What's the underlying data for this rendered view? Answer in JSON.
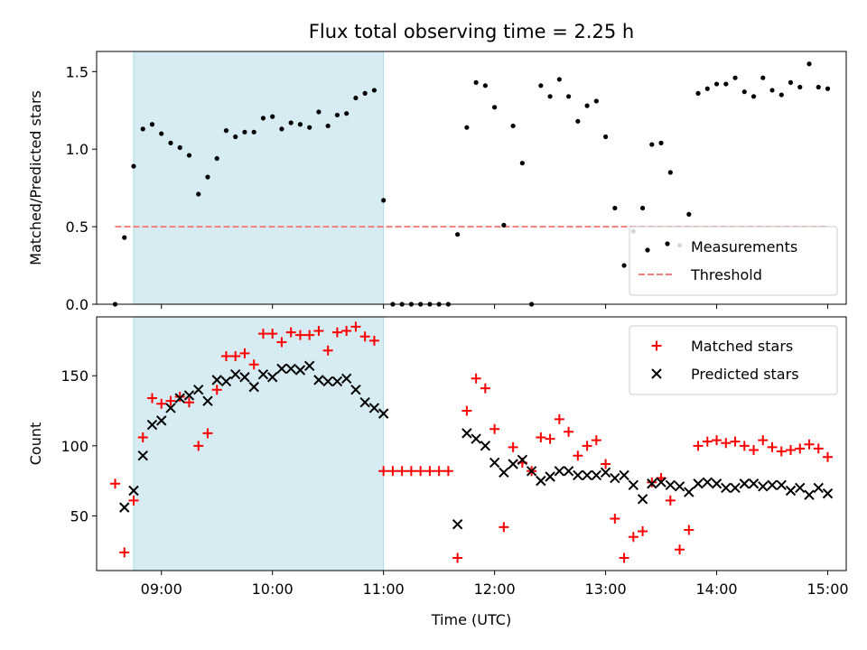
{
  "title": "Flux total observing time = 2.25 h",
  "chart_data": [
    {
      "type": "scatter",
      "ylabel": "Matched/Predicted stars",
      "xlim": [
        "08:25",
        "15:10"
      ],
      "ylim": [
        0,
        1.63
      ],
      "yticks": [
        0.0,
        0.5,
        1.0,
        1.5
      ],
      "ytick_labels": [
        "0.0",
        "0.5",
        "1.0",
        "1.5"
      ],
      "shaded_span": [
        "08:45",
        "11:00"
      ],
      "legend": {
        "placement": "lower-right",
        "entries": [
          "Measurements",
          "Threshold"
        ]
      },
      "threshold": {
        "name": "Threshold",
        "value": 0.5,
        "x_range": [
          "08:35",
          "15:00"
        ],
        "color": "#f08080"
      },
      "series": [
        {
          "name": "Measurements",
          "marker": "dot",
          "color": "#000000",
          "points": [
            [
              "08:35",
              0.0
            ],
            [
              "08:40",
              0.43
            ],
            [
              "08:45",
              0.89
            ],
            [
              "08:50",
              1.13
            ],
            [
              "08:55",
              1.16
            ],
            [
              "09:00",
              1.1
            ],
            [
              "09:05",
              1.04
            ],
            [
              "09:10",
              1.01
            ],
            [
              "09:15",
              0.96
            ],
            [
              "09:20",
              0.71
            ],
            [
              "09:25",
              0.82
            ],
            [
              "09:30",
              0.94
            ],
            [
              "09:35",
              1.12
            ],
            [
              "09:40",
              1.08
            ],
            [
              "09:45",
              1.11
            ],
            [
              "09:50",
              1.11
            ],
            [
              "09:55",
              1.2
            ],
            [
              "10:00",
              1.21
            ],
            [
              "10:05",
              1.13
            ],
            [
              "10:10",
              1.17
            ],
            [
              "10:15",
              1.16
            ],
            [
              "10:20",
              1.14
            ],
            [
              "10:25",
              1.24
            ],
            [
              "10:30",
              1.15
            ],
            [
              "10:35",
              1.22
            ],
            [
              "10:40",
              1.23
            ],
            [
              "10:45",
              1.33
            ],
            [
              "10:50",
              1.36
            ],
            [
              "10:55",
              1.38
            ],
            [
              "11:00",
              0.67
            ],
            [
              "11:05",
              0.0
            ],
            [
              "11:10",
              0.0
            ],
            [
              "11:15",
              0.0
            ],
            [
              "11:20",
              0.0
            ],
            [
              "11:25",
              0.0
            ],
            [
              "11:30",
              0.0
            ],
            [
              "11:35",
              0.0
            ],
            [
              "11:40",
              0.45
            ],
            [
              "11:45",
              1.14
            ],
            [
              "11:50",
              1.43
            ],
            [
              "11:55",
              1.41
            ],
            [
              "12:00",
              1.27
            ],
            [
              "12:05",
              0.51
            ],
            [
              "12:10",
              1.15
            ],
            [
              "12:15",
              0.91
            ],
            [
              "12:20",
              0.0
            ],
            [
              "12:25",
              1.41
            ],
            [
              "12:30",
              1.34
            ],
            [
              "12:35",
              1.45
            ],
            [
              "12:40",
              1.34
            ],
            [
              "12:45",
              1.18
            ],
            [
              "12:50",
              1.28
            ],
            [
              "12:55",
              1.31
            ],
            [
              "13:00",
              1.08
            ],
            [
              "13:05",
              0.62
            ],
            [
              "13:10",
              0.25
            ],
            [
              "13:15",
              0.47
            ],
            [
              "13:20",
              0.62
            ],
            [
              "13:25",
              1.03
            ],
            [
              "13:30",
              1.04
            ],
            [
              "13:35",
              0.85
            ],
            [
              "13:40",
              0.38
            ],
            [
              "13:45",
              0.58
            ],
            [
              "13:50",
              1.36
            ],
            [
              "13:55",
              1.39
            ],
            [
              "14:00",
              1.42
            ],
            [
              "14:05",
              1.42
            ],
            [
              "14:10",
              1.46
            ],
            [
              "14:15",
              1.37
            ],
            [
              "14:20",
              1.34
            ],
            [
              "14:25",
              1.46
            ],
            [
              "14:30",
              1.38
            ],
            [
              "14:35",
              1.35
            ],
            [
              "14:40",
              1.43
            ],
            [
              "14:45",
              1.4
            ],
            [
              "14:50",
              1.55
            ],
            [
              "14:55",
              1.4
            ],
            [
              "15:00",
              1.39
            ]
          ]
        }
      ]
    },
    {
      "type": "scatter",
      "ylabel": "Count",
      "xlabel": "Time (UTC)",
      "xlim": [
        "08:25",
        "15:10"
      ],
      "xticks": [
        "09:00",
        "10:00",
        "11:00",
        "12:00",
        "13:00",
        "14:00",
        "15:00"
      ],
      "ylim": [
        11,
        192
      ],
      "yticks": [
        50,
        100,
        150
      ],
      "ytick_labels": [
        "50",
        "100",
        "150"
      ],
      "shaded_span": [
        "08:45",
        "11:00"
      ],
      "legend": {
        "placement": "top-right",
        "entries": [
          "Matched stars",
          "Predicted stars"
        ]
      },
      "series": [
        {
          "name": "Matched stars",
          "marker": "plus",
          "color": "#ff0000",
          "points": [
            [
              "08:35",
              73
            ],
            [
              "08:40",
              24
            ],
            [
              "08:45",
              61
            ],
            [
              "08:50",
              106
            ],
            [
              "08:55",
              134
            ],
            [
              "09:00",
              130
            ],
            [
              "09:05",
              132
            ],
            [
              "09:10",
              135
            ],
            [
              "09:15",
              131
            ],
            [
              "09:20",
              100
            ],
            [
              "09:25",
              109
            ],
            [
              "09:30",
              140
            ],
            [
              "09:35",
              164
            ],
            [
              "09:40",
              164
            ],
            [
              "09:45",
              166
            ],
            [
              "09:50",
              158
            ],
            [
              "09:55",
              180
            ],
            [
              "10:00",
              180
            ],
            [
              "10:05",
              174
            ],
            [
              "10:10",
              181
            ],
            [
              "10:15",
              179
            ],
            [
              "10:20",
              179
            ],
            [
              "10:25",
              182
            ],
            [
              "10:30",
              168
            ],
            [
              "10:35",
              181
            ],
            [
              "10:40",
              182
            ],
            [
              "10:45",
              185
            ],
            [
              "10:50",
              178
            ],
            [
              "10:55",
              175
            ],
            [
              "11:00",
              82
            ],
            [
              "11:05",
              82
            ],
            [
              "11:10",
              82
            ],
            [
              "11:15",
              82
            ],
            [
              "11:20",
              82
            ],
            [
              "11:25",
              82
            ],
            [
              "11:30",
              82
            ],
            [
              "11:35",
              82
            ],
            [
              "11:40",
              20
            ],
            [
              "11:45",
              125
            ],
            [
              "11:50",
              148
            ],
            [
              "11:55",
              141
            ],
            [
              "12:00",
              112
            ],
            [
              "12:05",
              42
            ],
            [
              "12:10",
              99
            ],
            [
              "12:15",
              88
            ],
            [
              "12:20",
              82
            ],
            [
              "12:25",
              106
            ],
            [
              "12:30",
              105
            ],
            [
              "12:35",
              119
            ],
            [
              "12:40",
              110
            ],
            [
              "12:45",
              93
            ],
            [
              "12:50",
              100
            ],
            [
              "12:55",
              104
            ],
            [
              "13:00",
              87
            ],
            [
              "13:05",
              48
            ],
            [
              "13:10",
              20
            ],
            [
              "13:15",
              35
            ],
            [
              "13:20",
              39
            ],
            [
              "13:25",
              74
            ],
            [
              "13:30",
              77
            ],
            [
              "13:35",
              61
            ],
            [
              "13:40",
              26
            ],
            [
              "13:45",
              40
            ],
            [
              "13:50",
              100
            ],
            [
              "13:55",
              103
            ],
            [
              "14:00",
              104
            ],
            [
              "14:05",
              102
            ],
            [
              "14:10",
              103
            ],
            [
              "14:15",
              100
            ],
            [
              "14:20",
              97
            ],
            [
              "14:25",
              104
            ],
            [
              "14:30",
              99
            ],
            [
              "14:35",
              96
            ],
            [
              "14:40",
              97
            ],
            [
              "14:45",
              98
            ],
            [
              "14:50",
              101
            ],
            [
              "14:55",
              98
            ],
            [
              "15:00",
              92
            ]
          ]
        },
        {
          "name": "Predicted stars",
          "marker": "x",
          "color": "#000000",
          "points": [
            [
              "08:40",
              56
            ],
            [
              "08:45",
              68
            ],
            [
              "08:50",
              93
            ],
            [
              "08:55",
              115
            ],
            [
              "09:00",
              118
            ],
            [
              "09:05",
              127
            ],
            [
              "09:10",
              134
            ],
            [
              "09:15",
              136
            ],
            [
              "09:20",
              140
            ],
            [
              "09:25",
              132
            ],
            [
              "09:30",
              147
            ],
            [
              "09:35",
              146
            ],
            [
              "09:40",
              151
            ],
            [
              "09:45",
              149
            ],
            [
              "09:50",
              142
            ],
            [
              "09:55",
              151
            ],
            [
              "10:00",
              149
            ],
            [
              "10:05",
              155
            ],
            [
              "10:10",
              155
            ],
            [
              "10:15",
              154
            ],
            [
              "10:20",
              157
            ],
            [
              "10:25",
              147
            ],
            [
              "10:30",
              146
            ],
            [
              "10:35",
              146
            ],
            [
              "10:40",
              148
            ],
            [
              "10:45",
              140
            ],
            [
              "10:50",
              131
            ],
            [
              "10:55",
              127
            ],
            [
              "11:00",
              123
            ],
            [
              "11:40",
              44
            ],
            [
              "11:45",
              109
            ],
            [
              "11:50",
              105
            ],
            [
              "11:55",
              100
            ],
            [
              "12:00",
              88
            ],
            [
              "12:05",
              81
            ],
            [
              "12:10",
              87
            ],
            [
              "12:15",
              90
            ],
            [
              "12:20",
              82
            ],
            [
              "12:25",
              75
            ],
            [
              "12:30",
              78
            ],
            [
              "12:35",
              82
            ],
            [
              "12:40",
              82
            ],
            [
              "12:45",
              79
            ],
            [
              "12:50",
              79
            ],
            [
              "12:55",
              79
            ],
            [
              "13:00",
              81
            ],
            [
              "13:05",
              77
            ],
            [
              "13:10",
              79
            ],
            [
              "13:15",
              72
            ],
            [
              "13:20",
              62
            ],
            [
              "13:25",
              73
            ],
            [
              "13:30",
              74
            ],
            [
              "13:35",
              72
            ],
            [
              "13:40",
              71
            ],
            [
              "13:45",
              67
            ],
            [
              "13:50",
              73
            ],
            [
              "13:55",
              74
            ],
            [
              "14:00",
              73
            ],
            [
              "14:05",
              70
            ],
            [
              "14:10",
              70
            ],
            [
              "14:15",
              73
            ],
            [
              "14:20",
              73
            ],
            [
              "14:25",
              71
            ],
            [
              "14:30",
              72
            ],
            [
              "14:35",
              72
            ],
            [
              "14:40",
              68
            ],
            [
              "14:45",
              70
            ],
            [
              "14:50",
              65
            ],
            [
              "14:55",
              70
            ],
            [
              "15:00",
              66
            ]
          ]
        }
      ]
    }
  ]
}
